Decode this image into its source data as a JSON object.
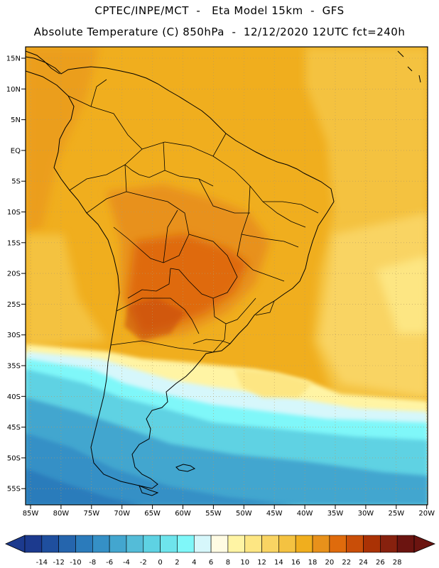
{
  "title_line1": "CPTEC/INPE/MCT  -   Eta Model 15km  -  GFS",
  "title_line2": "Absolute Temperature (C) 850hPa  -  12/12/2020 12UTC fct=240h",
  "lat_labels": [
    "15N",
    "10N",
    "5N",
    "EQ",
    "5S",
    "10S",
    "15S",
    "20S",
    "25S",
    "30S",
    "35S",
    "40S",
    "45S",
    "50S",
    "55S"
  ],
  "lon_labels": [
    "85W",
    "80W",
    "75W",
    "70W",
    "65W",
    "60W",
    "55W",
    "50W",
    "45W",
    "40W",
    "35W",
    "30W",
    "25W",
    "20W"
  ],
  "colorbar": {
    "labels": [
      "-14",
      "-12",
      "-10",
      "-8",
      "-6",
      "-4",
      "-2",
      "0",
      "2",
      "4",
      "6",
      "8",
      "10",
      "12",
      "14",
      "16",
      "18",
      "20",
      "22",
      "24",
      "26",
      "28"
    ],
    "colors": [
      "#1c3a8e",
      "#1f4f9e",
      "#2565ad",
      "#2b7bbb",
      "#3590c6",
      "#43a6cf",
      "#54bcd8",
      "#5ed2e3",
      "#6ee4ec",
      "#7ff7f9",
      "#d6f7fb",
      "#fffbe3",
      "#fff4a4",
      "#fde683",
      "#f9d463",
      "#f4c241",
      "#f0ae1e",
      "#e8911b",
      "#df6b0c",
      "#c94e08",
      "#aa3205",
      "#87210e",
      "#6b1410"
    ]
  }
}
